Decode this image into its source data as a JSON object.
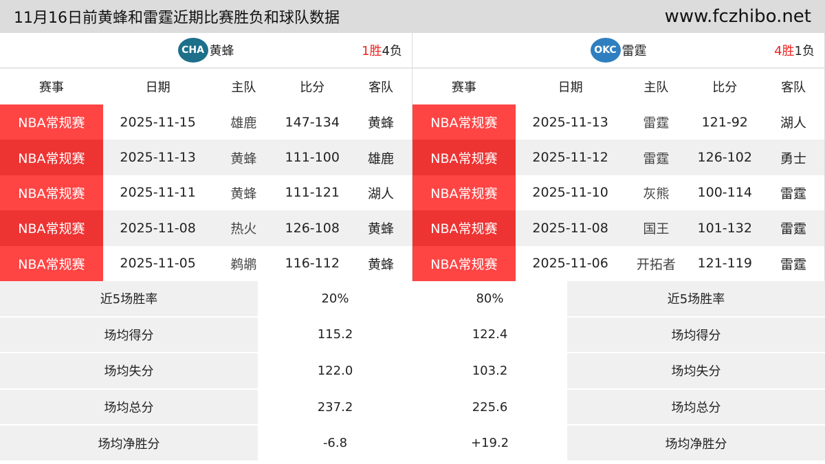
{
  "title": "11月16日前黄蜂和雷霆近期比赛胜负和球队数据",
  "site": "www.fczhibo.net",
  "headers": [
    "赛事",
    "日期",
    "主队",
    "比分",
    "客队"
  ],
  "teams": [
    {
      "name": "黄蜂",
      "abbr": "CHA",
      "logo_color": "#1d6f8a",
      "wins": "1",
      "losses": "4",
      "win_label": "胜",
      "loss_label": "负",
      "games": [
        [
          "NBA常规赛",
          "2025-11-15",
          "雄鹿",
          "147-134",
          "黄蜂"
        ],
        [
          "NBA常规赛",
          "2025-11-13",
          "黄蜂",
          "111-100",
          "雄鹿"
        ],
        [
          "NBA常规赛",
          "2025-11-11",
          "黄蜂",
          "111-121",
          "湖人"
        ],
        [
          "NBA常规赛",
          "2025-11-08",
          "热火",
          "126-108",
          "黄蜂"
        ],
        [
          "NBA常规赛",
          "2025-11-05",
          "鹈鹕",
          "116-112",
          "黄蜂"
        ]
      ]
    },
    {
      "name": "雷霆",
      "abbr": "OKC",
      "logo_color": "#2f7fc0",
      "wins": "4",
      "losses": "1",
      "win_label": "胜",
      "loss_label": "负",
      "games": [
        [
          "NBA常规赛",
          "2025-11-13",
          "雷霆",
          "121-92",
          "湖人"
        ],
        [
          "NBA常规赛",
          "2025-11-12",
          "雷霆",
          "126-102",
          "勇士"
        ],
        [
          "NBA常规赛",
          "2025-11-10",
          "灰熊",
          "100-114",
          "雷霆"
        ],
        [
          "NBA常规赛",
          "2025-11-08",
          "国王",
          "101-132",
          "雷霆"
        ],
        [
          "NBA常规赛",
          "2025-11-06",
          "开拓者",
          "121-119",
          "雷霆"
        ]
      ]
    }
  ],
  "stats": [
    {
      "label": "近5场胜率",
      "left": "20%",
      "right": "80%"
    },
    {
      "label": "场均得分",
      "left": "115.2",
      "right": "122.4"
    },
    {
      "label": "场均失分",
      "left": "122.0",
      "right": "103.2"
    },
    {
      "label": "场均总分",
      "left": "237.2",
      "right": "225.6"
    },
    {
      "label": "场均净胜分",
      "left": "-6.8",
      "right": "+19.2"
    }
  ],
  "colors": {
    "accent_red": "#ff4444",
    "title_bg": "#dcdcdc"
  }
}
